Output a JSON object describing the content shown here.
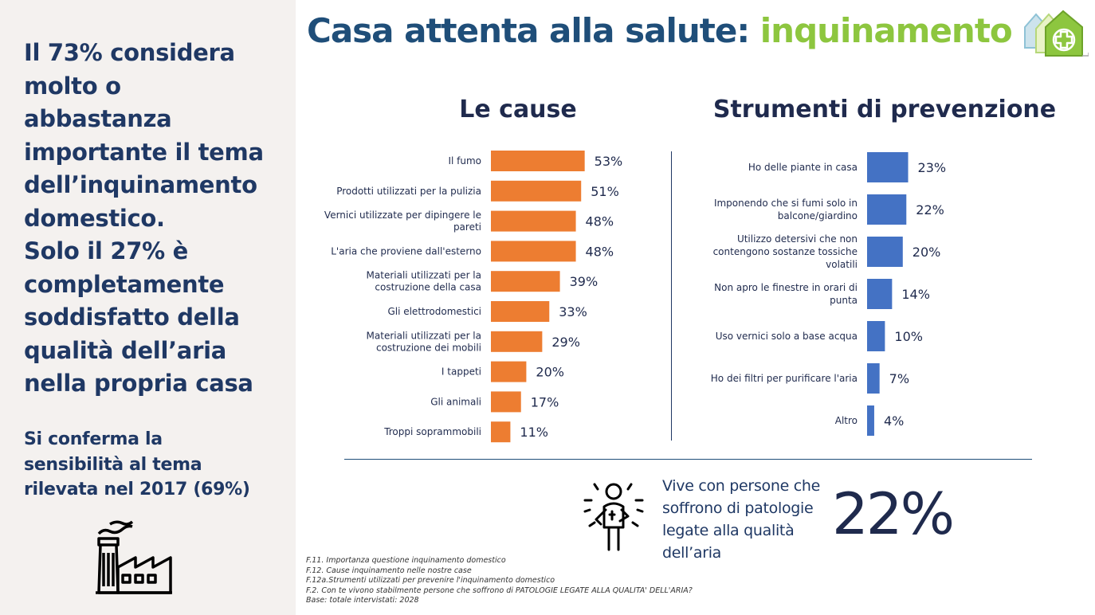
{
  "left_panel": {
    "headline": "Il 73% considera\nmolto o\nabbastanza\nimportante il tema\ndell’inquinamento\ndomestico.\nSolo il 27% è\ncompletamente\nsoddisfatto della\nqualità dell’aria\nnella propria casa",
    "subtext": "Si conferma la\nsensibilità al tema\nrilevata nel 2017 (69%)"
  },
  "title": {
    "main": "Casa attenta alla salute: ",
    "accent": "inquinamento"
  },
  "colors": {
    "navy": "#1f3864",
    "accent_green": "#8dc63f",
    "cause_bar": "#ed7d31",
    "prevention_bar": "#4472c4"
  },
  "icons": {
    "logo": "house-health-icon",
    "factory": "factory-icon",
    "person": "sick-person-icon"
  },
  "chart_data": [
    {
      "type": "bar",
      "orientation": "horizontal",
      "title": "Le cause",
      "categories": [
        "Il fumo",
        "Prodotti utilizzati per la pulizia",
        "Vernici utilizzate per dipingere le\npareti",
        "L'aria che proviene dall'esterno",
        "Materiali utilizzati per la\ncostruzione della casa",
        "Gli elettrodomestici",
        "Materiali utilizzati per la\ncostruzione dei mobili",
        "I tappeti",
        "Gli animali",
        "Troppi soprammobili"
      ],
      "values": [
        53,
        51,
        48,
        48,
        39,
        33,
        29,
        20,
        17,
        11
      ],
      "value_labels": [
        "53%",
        "51%",
        "48%",
        "48%",
        "39%",
        "33%",
        "29%",
        "20%",
        "17%",
        "11%"
      ],
      "unit": "%",
      "xlim": [
        0,
        100
      ],
      "grid": false
    },
    {
      "type": "bar",
      "orientation": "horizontal",
      "title": "Strumenti di prevenzione",
      "categories": [
        "Ho delle piante in casa",
        "Imponendo che si fumi solo in\nbalcone/giardino",
        "Utilizzo detersivi che non\ncontengono sostanze tossiche\nvolatili",
        "Non apro le finestre in orari di\npunta",
        "Uso vernici solo a base acqua",
        "Ho dei filtri per purificare l'aria",
        "Altro"
      ],
      "values": [
        23,
        22,
        20,
        14,
        10,
        7,
        4
      ],
      "value_labels": [
        "23%",
        "22%",
        "20%",
        "14%",
        "10%",
        "7%",
        "4%"
      ],
      "unit": "%",
      "xlim": [
        0,
        100
      ],
      "grid": false
    }
  ],
  "callout": {
    "text": "Vive con persone che\nsoffrono di patologie\nlegate alla qualità\ndell’aria",
    "value": "22%"
  },
  "footnotes": [
    "F.11. Importanza questione inquinamento domestico",
    "F.12. Cause inquinamento nelle nostre case",
    "F.12a.Strumenti utilizzati per prevenire l'inquinamento domestico",
    "F.2. Con te vivono stabilmente persone che soffrono di PATOLOGIE LEGATE ALLA QUALITA' DELL'ARIA?",
    "Base: totale intervistati: 2028"
  ]
}
